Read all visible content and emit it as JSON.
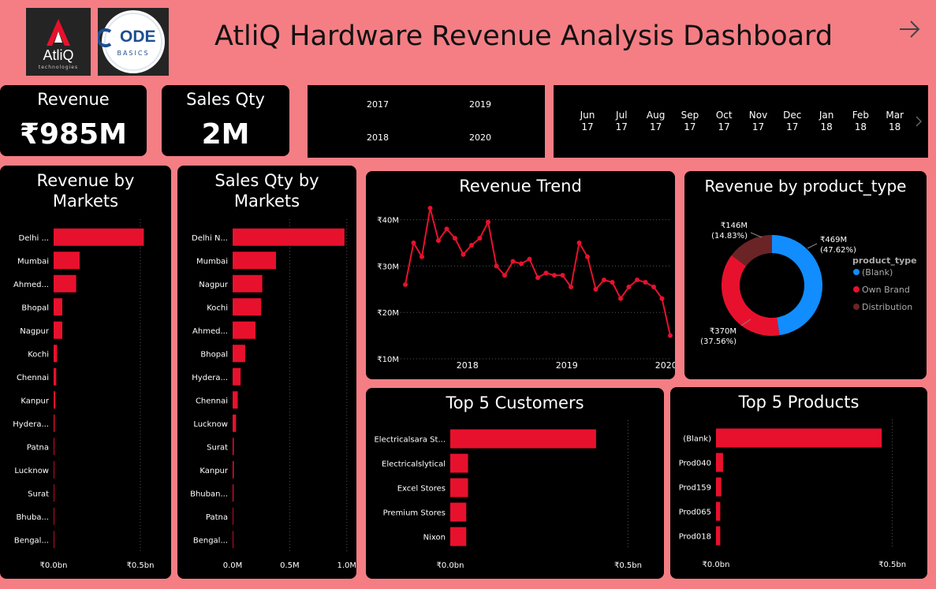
{
  "header": {
    "title": "AtliQ Hardware Revenue Analysis Dashboard",
    "logo1_text": "AtliQ",
    "logo1_sub": "technologies",
    "logo2_text": "ODE",
    "logo2_sub": "BASICS"
  },
  "kpis": {
    "revenue_label": "Revenue",
    "revenue_value": "₹985M",
    "qty_label": "Sales Qty",
    "qty_value": "2M"
  },
  "year_slicer": [
    "2017",
    "2019",
    "2018",
    "2020"
  ],
  "month_slicer": [
    {
      "m": "Jun",
      "y": "17"
    },
    {
      "m": "Jul",
      "y": "17"
    },
    {
      "m": "Aug",
      "y": "17"
    },
    {
      "m": "Sep",
      "y": "17"
    },
    {
      "m": "Oct",
      "y": "17"
    },
    {
      "m": "Nov",
      "y": "17"
    },
    {
      "m": "Dec",
      "y": "17"
    },
    {
      "m": "Jan",
      "y": "18"
    },
    {
      "m": "Feb",
      "y": "18"
    },
    {
      "m": "Mar",
      "y": "18"
    }
  ],
  "colors": {
    "accent": "#e8112d",
    "blue": "#118dff",
    "maroon": "#6b2426",
    "bg": "#f47e84"
  },
  "charts": {
    "rev_markets": {
      "title_line1": "Revenue by",
      "title_line2": "Markets",
      "categories": [
        "Delhi ...",
        "Mumbai",
        "Ahmed...",
        "Bhopal",
        "Nagpur",
        "Kochi",
        "Chennai",
        "Kanpur",
        "Hydera...",
        "Patna",
        "Lucknow",
        "Surat",
        "Bhuba...",
        "Bengal..."
      ],
      "values": [
        0.52,
        0.15,
        0.13,
        0.05,
        0.05,
        0.02,
        0.015,
        0.01,
        0.006,
        0.004,
        0.003,
        0.002,
        0.002,
        0.001
      ],
      "xmax": 0.6,
      "ticks": [
        "₹0.0bn",
        "₹0.5bn"
      ],
      "tick_values": [
        0,
        0.5
      ]
    },
    "qty_markets": {
      "title_line1": "Sales Qty by",
      "title_line2": "Markets",
      "categories": [
        "Delhi N...",
        "Mumbai",
        "Nagpur",
        "Kochi",
        "Ahmed...",
        "Bhopal",
        "Hydera...",
        "Chennai",
        "Lucknow",
        "Surat",
        "Kanpur",
        "Bhuban...",
        "Patna",
        "Bengal..."
      ],
      "values": [
        0.98,
        0.38,
        0.26,
        0.25,
        0.2,
        0.11,
        0.07,
        0.045,
        0.03,
        0.01,
        0.01,
        0.008,
        0.005,
        0.003
      ],
      "xmax": 1.05,
      "ticks": [
        "0.0M",
        "0.5M",
        "1.0M"
      ],
      "tick_values": [
        0,
        0.5,
        1.0
      ]
    },
    "trend": {
      "title": "Revenue Trend",
      "y_ticks": [
        "₹10M",
        "₹20M",
        "₹30M",
        "₹40M"
      ],
      "y_tick_values": [
        10,
        20,
        30,
        40
      ],
      "ylim": [
        10,
        43
      ],
      "x_ticks": [
        "2018",
        "2019",
        "2020"
      ],
      "x_tick_index": [
        7.5,
        19.5,
        31.5
      ],
      "values": [
        26,
        35,
        32,
        42.5,
        35.5,
        38,
        36,
        32.5,
        34.5,
        36,
        39.5,
        30,
        28,
        31,
        30.5,
        31.5,
        27.5,
        28.5,
        28,
        28,
        25.5,
        35,
        32,
        25,
        27,
        26.5,
        23,
        25.5,
        27,
        26.5,
        25.5,
        23,
        15
      ]
    },
    "product_type": {
      "title": "Revenue by product_type",
      "legend_title": "product_type",
      "segments": [
        {
          "name": "(Blank)",
          "value": 469,
          "label": "₹469M",
          "pct": "(47.62%)",
          "color": "#118dff"
        },
        {
          "name": "Own Brand",
          "value": 370,
          "label": "₹370M",
          "pct": "(37.56%)",
          "color": "#e8112d"
        },
        {
          "name": "Distribution",
          "value": 146,
          "label": "₹146M",
          "pct": "(14.83%)",
          "color": "#6b2426"
        }
      ]
    },
    "customers": {
      "title": "Top 5 Customers",
      "categories": [
        "Electricalsara St...",
        "Electricalslytical",
        "Excel Stores",
        "Premium Stores",
        "Nixon"
      ],
      "values": [
        0.41,
        0.05,
        0.05,
        0.045,
        0.045
      ],
      "xmax": 0.55,
      "ticks": [
        "₹0.0bn",
        "₹0.5bn"
      ],
      "tick_values": [
        0,
        0.5
      ]
    },
    "products": {
      "title": "Top 5 Products",
      "categories": [
        "(Blank)",
        "Prod040",
        "Prod159",
        "Prod065",
        "Prod018"
      ],
      "values": [
        0.47,
        0.02,
        0.015,
        0.012,
        0.012
      ],
      "xmax": 0.55,
      "ticks": [
        "₹0.0bn",
        "₹0.5bn"
      ],
      "tick_values": [
        0,
        0.5
      ]
    }
  }
}
